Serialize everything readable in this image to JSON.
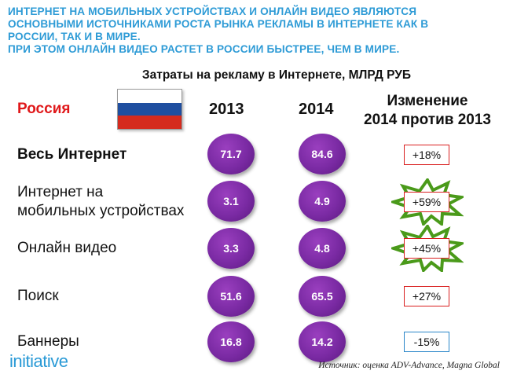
{
  "headline": {
    "lines": [
      "ИНТЕРНЕТ НА МОБИЛЬНЫХ УСТРОЙСТВАХ И ОНЛАЙН ВИДЕО ЯВЛЯЮТСЯ",
      "ОСНОВНЫМИ ИСТОЧНИКАМИ РОСТА РЫНКА РЕКЛАМЫ В ИНТЕРНЕТЕ КАК В",
      "РОССИИ, ТАК И В МИРЕ.",
      "ПРИ ЭТОМ ОНЛАЙН ВИДЕО РАСТЕТ В РОССИИ БЫСТРЕЕ, ЧЕМ В МИРЕ."
    ],
    "color": "#2e9bd6"
  },
  "subtitle": "Затраты на рекламу в Интернете, МЛРД РУБ",
  "table": {
    "country": "Россия",
    "country_color": "#e0181a",
    "flag_colors": [
      "#ffffff",
      "#1f4fa0",
      "#d52b1e"
    ],
    "col_2013": "2013",
    "col_2014": "2014",
    "change_header_line1": "Изменение",
    "change_header_line2": "2014 против 2013",
    "rows": [
      {
        "label_line1": "Весь Интернет",
        "label_line2": "",
        "v2013": "71.7",
        "v2014": "84.6",
        "change": "+18%",
        "highlight": false
      },
      {
        "label_line1": "Интернет на",
        "label_line2": "мобильных устройствах",
        "v2013": "3.1",
        "v2014": "4.9",
        "change": "+59%",
        "highlight": true
      },
      {
        "label_line1": "Онлайн видео",
        "label_line2": "",
        "v2013": "3.3",
        "v2014": "4.8",
        "change": "+45%",
        "highlight": true
      },
      {
        "label_line1": "Поиск",
        "label_line2": "",
        "v2013": "51.6",
        "v2014": "65.5",
        "change": "+27%",
        "highlight": false
      },
      {
        "label_line1": "Баннеры",
        "label_line2": "",
        "v2013": "16.8",
        "v2014": "14.2",
        "change": "-15%",
        "highlight": false
      }
    ],
    "circle_color": "#7a2aa3",
    "positive_box_color": "#d92020",
    "negative_box_color": "#2a86c9",
    "star_color": "#4a9a1a"
  },
  "logo": "initiative",
  "source": "Источник: оценка ADV-Advance, Magna Global"
}
